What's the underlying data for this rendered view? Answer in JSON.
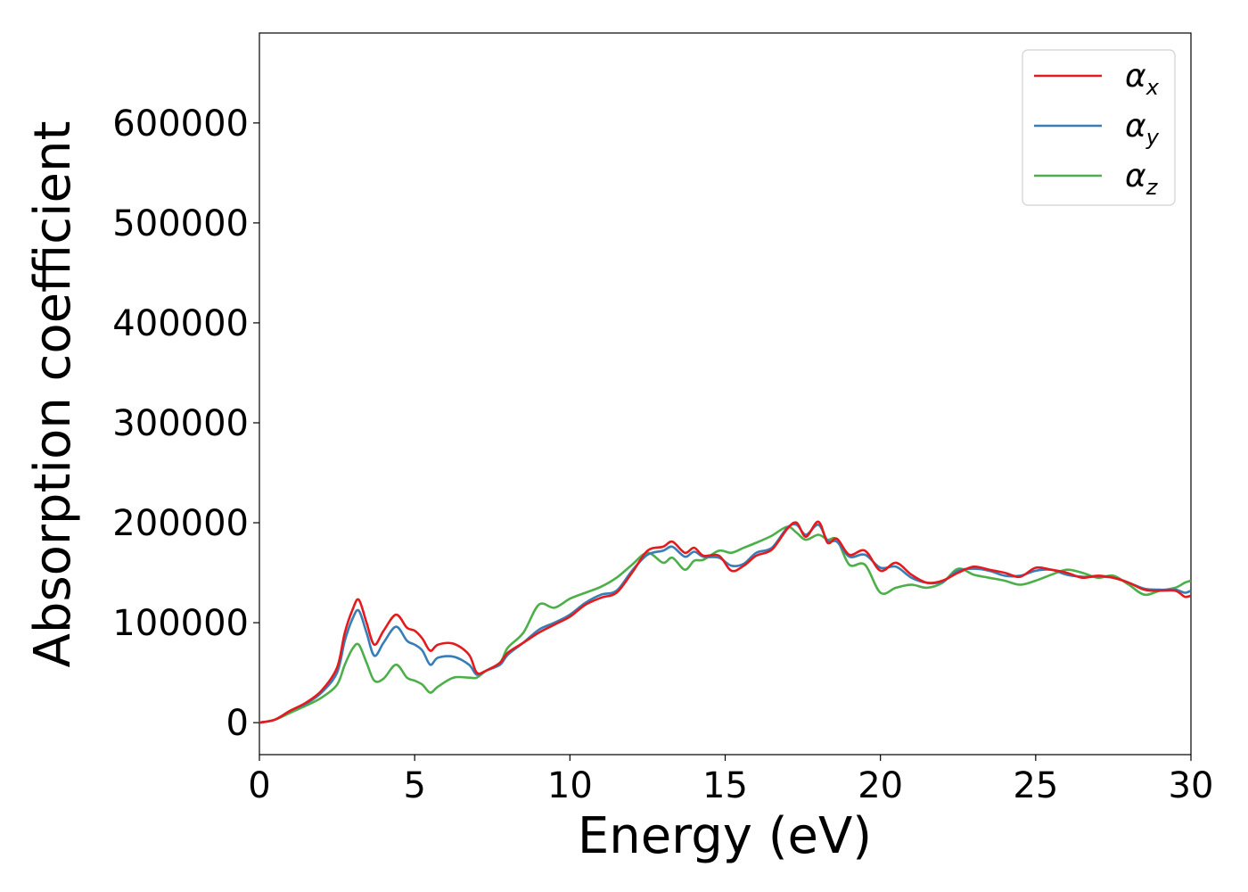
{
  "chart_data": {
    "type": "line",
    "title": "",
    "xlabel": "Energy (eV)",
    "ylabel": "Absorption coefficient",
    "xlim": [
      0,
      30
    ],
    "ylim": [
      -32000,
      690000
    ],
    "xticks": [
      0,
      5,
      10,
      15,
      20,
      25,
      30
    ],
    "yticks": [
      0,
      100000,
      200000,
      300000,
      400000,
      500000,
      600000
    ],
    "xtick_labels": [
      "0",
      "5",
      "10",
      "15",
      "20",
      "25",
      "30"
    ],
    "ytick_labels": [
      "0",
      "100000",
      "200000",
      "300000",
      "400000",
      "500000",
      "600000"
    ],
    "grid": false,
    "legend_position": "top-right",
    "series": [
      {
        "name": "α",
        "sub": "x",
        "color": "#e41a1c",
        "x": [
          0,
          0.5,
          1,
          1.5,
          2,
          2.5,
          2.75,
          3,
          3.2,
          3.45,
          3.7,
          4,
          4.4,
          4.75,
          5,
          5.25,
          5.5,
          5.75,
          6.25,
          6.75,
          7,
          7.3,
          7.75,
          8,
          8.5,
          9,
          9.5,
          10,
          10.5,
          11,
          11.5,
          12,
          12.5,
          13,
          13.3,
          13.7,
          14,
          14.3,
          14.8,
          15.2,
          15.6,
          16,
          16.5,
          17,
          17.3,
          17.6,
          18,
          18.3,
          18.6,
          19,
          19.5,
          20,
          20.5,
          21,
          21.5,
          22,
          22.5,
          23,
          23.5,
          24,
          24.5,
          25,
          25.5,
          26,
          26.5,
          27,
          27.5,
          28,
          28.5,
          29,
          29.5,
          29.8,
          30
        ],
        "y": [
          0,
          3000,
          12000,
          20000,
          32000,
          55000,
          90000,
          113000,
          123000,
          100000,
          78000,
          92000,
          108000,
          95000,
          92000,
          84000,
          72000,
          78000,
          79000,
          68000,
          50000,
          52000,
          60000,
          70000,
          80000,
          90000,
          98000,
          106000,
          118000,
          125000,
          130000,
          150000,
          172000,
          176000,
          181000,
          170000,
          175000,
          167000,
          167000,
          152000,
          157000,
          167000,
          173000,
          194000,
          200000,
          186000,
          201000,
          180000,
          184000,
          168000,
          172000,
          152000,
          160000,
          148000,
          140000,
          142000,
          150000,
          156000,
          153000,
          150000,
          146000,
          155000,
          153000,
          150000,
          145000,
          147000,
          145000,
          140000,
          133000,
          132000,
          132000,
          126000,
          127000
        ]
      },
      {
        "name": "α",
        "sub": "y",
        "color": "#377eb8",
        "x": [
          0,
          0.5,
          1,
          1.5,
          2,
          2.5,
          2.75,
          3,
          3.2,
          3.45,
          3.7,
          4,
          4.4,
          4.75,
          5,
          5.25,
          5.5,
          5.75,
          6.25,
          6.75,
          7,
          7.3,
          7.75,
          8,
          8.5,
          9,
          9.5,
          10,
          10.5,
          11,
          11.5,
          12,
          12.5,
          13,
          13.3,
          13.7,
          14,
          14.3,
          14.8,
          15.2,
          15.6,
          16,
          16.5,
          17,
          17.3,
          17.6,
          18,
          18.3,
          18.6,
          19,
          19.5,
          20,
          20.5,
          21,
          21.5,
          22,
          22.5,
          23,
          23.5,
          24,
          24.5,
          25,
          25.5,
          26,
          26.5,
          27,
          27.5,
          28,
          28.5,
          29,
          29.5,
          29.8,
          30
        ],
        "y": [
          0,
          3000,
          12000,
          19000,
          30000,
          50000,
          82000,
          104000,
          112000,
          90000,
          67000,
          80000,
          96000,
          82000,
          78000,
          72000,
          58000,
          65000,
          66000,
          58000,
          48000,
          52000,
          58000,
          68000,
          80000,
          93000,
          100000,
          108000,
          120000,
          128000,
          132000,
          152000,
          168000,
          172000,
          176000,
          166000,
          171000,
          166000,
          165000,
          157000,
          159000,
          170000,
          175000,
          195000,
          198000,
          188000,
          198000,
          182000,
          181000,
          166000,
          168000,
          155000,
          156000,
          145000,
          140000,
          141000,
          152000,
          154000,
          152000,
          147000,
          147000,
          152000,
          153000,
          148000,
          146000,
          146000,
          145000,
          140000,
          134000,
          133000,
          133000,
          130000,
          132000
        ]
      },
      {
        "name": "α",
        "sub": "z",
        "color": "#4daf4a",
        "x": [
          0,
          0.5,
          1,
          1.5,
          2,
          2.5,
          2.75,
          3,
          3.2,
          3.45,
          3.7,
          4,
          4.4,
          4.75,
          5,
          5.25,
          5.5,
          5.75,
          6.25,
          6.75,
          7,
          7.3,
          7.75,
          8,
          8.5,
          9,
          9.5,
          10,
          10.5,
          11,
          11.5,
          12,
          12.5,
          13,
          13.3,
          13.7,
          14,
          14.3,
          14.8,
          15.2,
          15.6,
          16,
          16.5,
          17,
          17.3,
          17.6,
          18,
          18.3,
          18.6,
          19,
          19.5,
          20,
          20.5,
          21,
          21.5,
          22,
          22.5,
          23,
          23.5,
          24,
          24.5,
          25,
          25.5,
          26,
          26.5,
          27,
          27.5,
          28,
          28.5,
          29,
          29.5,
          29.8,
          30
        ],
        "y": [
          0,
          3000,
          10000,
          17000,
          25000,
          38000,
          58000,
          74000,
          78000,
          60000,
          42000,
          44000,
          58000,
          45000,
          42000,
          38000,
          30000,
          36000,
          45000,
          45000,
          45000,
          52000,
          60000,
          75000,
          90000,
          118000,
          115000,
          124000,
          130000,
          136000,
          145000,
          158000,
          170000,
          160000,
          165000,
          153000,
          162000,
          163000,
          172000,
          170000,
          175000,
          180000,
          187000,
          196000,
          190000,
          183000,
          188000,
          183000,
          183000,
          158000,
          158000,
          130000,
          135000,
          138000,
          135000,
          140000,
          154000,
          148000,
          145000,
          142000,
          138000,
          142000,
          148000,
          153000,
          150000,
          145000,
          147000,
          138000,
          128000,
          132000,
          135000,
          140000,
          142000
        ]
      }
    ]
  }
}
